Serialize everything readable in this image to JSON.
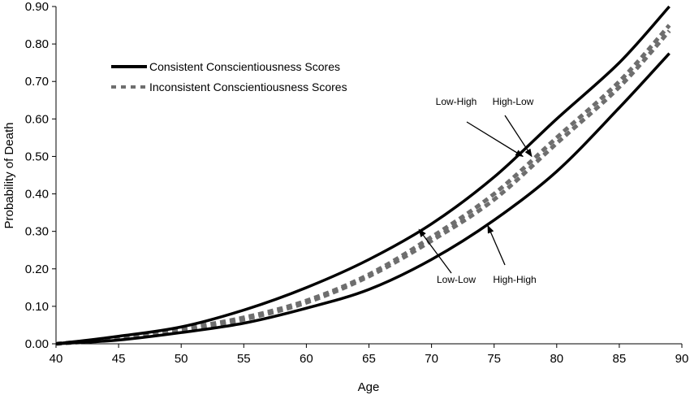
{
  "chart_data": {
    "type": "line",
    "xlabel": "Age",
    "ylabel": "Probability of Death",
    "xlim": [
      40,
      90
    ],
    "ylim": [
      0,
      0.9
    ],
    "xticks": [
      "40",
      "45",
      "50",
      "55",
      "60",
      "65",
      "70",
      "75",
      "80",
      "85",
      "90"
    ],
    "yticks": [
      "0.00",
      "0.10",
      "0.20",
      "0.30",
      "0.40",
      "0.50",
      "0.60",
      "0.70",
      "0.80",
      "0.90"
    ],
    "grid": false,
    "legend_position": "top-left",
    "legend": [
      {
        "label": "Consistent Conscientiousness Scores",
        "style": "solid",
        "color": "#000000"
      },
      {
        "label": "Inconsistent Conscientiousness Scores",
        "style": "dashed",
        "color": "#6e6e6e"
      }
    ],
    "x": [
      40,
      45,
      50,
      55,
      60,
      65,
      70,
      75,
      80,
      85,
      89
    ],
    "series": [
      {
        "group": "consistent",
        "values": [
          0,
          0.02,
          0.045,
          0.09,
          0.15,
          0.225,
          0.32,
          0.445,
          0.6,
          0.75,
          0.9
        ]
      },
      {
        "group": "consistent",
        "values": [
          0,
          0.01,
          0.03,
          0.055,
          0.095,
          0.145,
          0.225,
          0.33,
          0.46,
          0.63,
          0.775
        ]
      },
      {
        "group": "inconsistent",
        "values": [
          0,
          0.015,
          0.04,
          0.07,
          0.115,
          0.185,
          0.285,
          0.4,
          0.55,
          0.7,
          0.85
        ]
      },
      {
        "group": "inconsistent",
        "values": [
          0,
          0.013,
          0.035,
          0.065,
          0.11,
          0.18,
          0.275,
          0.385,
          0.535,
          0.685,
          0.835
        ]
      }
    ],
    "annotations": [
      {
        "text": "Low-High",
        "tip": [
          77.3,
          0.5
        ]
      },
      {
        "text": "High-Low",
        "tip": [
          78.0,
          0.5
        ]
      },
      {
        "text": "Low-Low",
        "tip": [
          69.0,
          0.305
        ]
      },
      {
        "text": "High-High",
        "tip": [
          74.5,
          0.315
        ]
      }
    ]
  }
}
